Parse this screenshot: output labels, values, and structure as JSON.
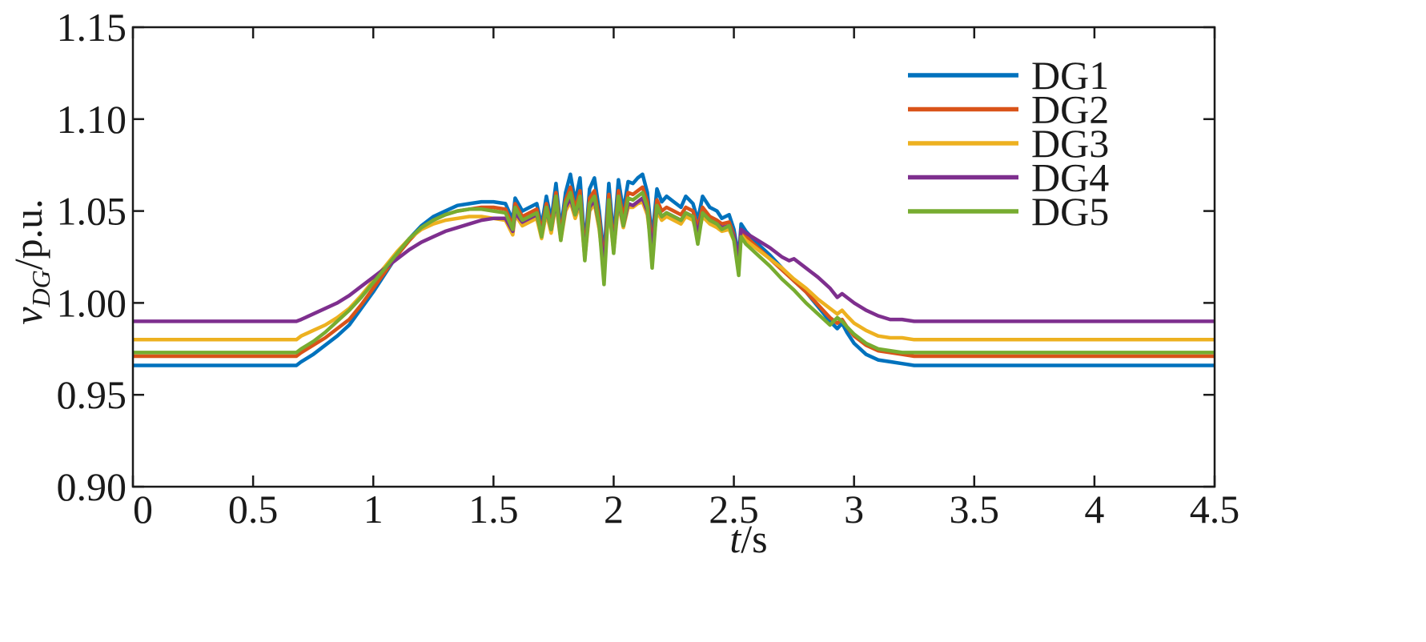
{
  "chart_data": {
    "type": "line",
    "xlabel_italic": "t",
    "xlabel_unit": "/s",
    "ylabel_main": "v",
    "ylabel_sub": "DG",
    "ylabel_unit": "/p.u.",
    "xlim": [
      0,
      4.5
    ],
    "ylim": [
      0.9,
      1.15
    ],
    "xticks": [
      0,
      0.5,
      1,
      1.5,
      2,
      2.5,
      3,
      3.5,
      4,
      4.5
    ],
    "xtick_labels": [
      "0",
      "0.5",
      "1",
      "1.5",
      "2",
      "2.5",
      "3",
      "3.5",
      "4",
      "4.5"
    ],
    "yticks": [
      0.9,
      0.95,
      1.0,
      1.05,
      1.1,
      1.15
    ],
    "ytick_labels": [
      "0.90",
      "0.95",
      "1.00",
      "1.05",
      "1.10",
      "1.15"
    ],
    "grid": false,
    "legend_position": "top-right",
    "series": [
      {
        "name": "DG1",
        "color": "#0072BD",
        "x": [
          0,
          0.68,
          0.7,
          0.75,
          0.8,
          0.85,
          0.9,
          0.95,
          1.0,
          1.05,
          1.1,
          1.15,
          1.2,
          1.25,
          1.3,
          1.35,
          1.4,
          1.45,
          1.5,
          1.55,
          1.58,
          1.59,
          1.62,
          1.65,
          1.68,
          1.7,
          1.72,
          1.74,
          1.76,
          1.78,
          1.8,
          1.82,
          1.84,
          1.86,
          1.88,
          1.9,
          1.92,
          1.94,
          1.96,
          1.98,
          2.0,
          2.02,
          2.04,
          2.06,
          2.08,
          2.1,
          2.12,
          2.14,
          2.16,
          2.18,
          2.2,
          2.22,
          2.25,
          2.28,
          2.3,
          2.33,
          2.35,
          2.37,
          2.4,
          2.43,
          2.45,
          2.48,
          2.5,
          2.52,
          2.53,
          2.55,
          2.6,
          2.65,
          2.7,
          2.75,
          2.8,
          2.85,
          2.9,
          2.93,
          2.95,
          2.97,
          3.0,
          3.05,
          3.1,
          3.15,
          3.2,
          3.25,
          3.3,
          3.5,
          4.0,
          4.5
        ],
        "y": [
          0.966,
          0.966,
          0.968,
          0.972,
          0.977,
          0.982,
          0.988,
          0.997,
          1.006,
          1.016,
          1.026,
          1.035,
          1.042,
          1.047,
          1.05,
          1.053,
          1.054,
          1.055,
          1.055,
          1.054,
          1.045,
          1.057,
          1.05,
          1.052,
          1.054,
          1.042,
          1.058,
          1.045,
          1.065,
          1.04,
          1.06,
          1.07,
          1.055,
          1.068,
          1.03,
          1.062,
          1.068,
          1.05,
          1.025,
          1.065,
          1.035,
          1.067,
          1.05,
          1.066,
          1.065,
          1.068,
          1.07,
          1.06,
          1.035,
          1.062,
          1.055,
          1.058,
          1.055,
          1.052,
          1.058,
          1.054,
          1.045,
          1.058,
          1.052,
          1.05,
          1.046,
          1.048,
          1.04,
          1.025,
          1.043,
          1.039,
          1.032,
          1.026,
          1.019,
          1.012,
          1.006,
          0.998,
          0.99,
          0.986,
          0.989,
          0.984,
          0.978,
          0.972,
          0.969,
          0.968,
          0.967,
          0.966,
          0.966,
          0.966,
          0.966,
          0.966
        ]
      },
      {
        "name": "DG2",
        "color": "#D95319",
        "x": [
          0,
          0.68,
          0.7,
          0.75,
          0.8,
          0.85,
          0.9,
          0.95,
          1.0,
          1.05,
          1.1,
          1.15,
          1.2,
          1.25,
          1.3,
          1.35,
          1.4,
          1.45,
          1.5,
          1.55,
          1.58,
          1.59,
          1.62,
          1.65,
          1.68,
          1.7,
          1.72,
          1.74,
          1.76,
          1.78,
          1.8,
          1.82,
          1.84,
          1.86,
          1.88,
          1.9,
          1.92,
          1.94,
          1.96,
          1.98,
          2.0,
          2.02,
          2.04,
          2.06,
          2.08,
          2.1,
          2.12,
          2.14,
          2.16,
          2.18,
          2.2,
          2.22,
          2.25,
          2.28,
          2.3,
          2.33,
          2.35,
          2.37,
          2.4,
          2.43,
          2.45,
          2.48,
          2.5,
          2.52,
          2.53,
          2.55,
          2.6,
          2.65,
          2.7,
          2.75,
          2.8,
          2.85,
          2.9,
          2.93,
          2.95,
          2.97,
          3.0,
          3.05,
          3.1,
          3.15,
          3.2,
          3.25,
          3.3,
          3.5,
          4.0,
          4.5
        ],
        "y": [
          0.971,
          0.971,
          0.973,
          0.977,
          0.981,
          0.986,
          0.991,
          0.999,
          1.008,
          1.017,
          1.026,
          1.034,
          1.041,
          1.045,
          1.048,
          1.05,
          1.051,
          1.052,
          1.052,
          1.051,
          1.042,
          1.054,
          1.047,
          1.049,
          1.051,
          1.039,
          1.054,
          1.042,
          1.06,
          1.037,
          1.056,
          1.063,
          1.051,
          1.061,
          1.027,
          1.057,
          1.061,
          1.046,
          1.021,
          1.059,
          1.031,
          1.061,
          1.046,
          1.06,
          1.059,
          1.061,
          1.063,
          1.055,
          1.031,
          1.056,
          1.05,
          1.052,
          1.05,
          1.048,
          1.052,
          1.05,
          1.041,
          1.052,
          1.047,
          1.045,
          1.043,
          1.044,
          1.037,
          1.022,
          1.04,
          1.036,
          1.03,
          1.024,
          1.018,
          1.012,
          1.006,
          0.999,
          0.992,
          0.989,
          0.991,
          0.987,
          0.982,
          0.977,
          0.974,
          0.973,
          0.972,
          0.971,
          0.971,
          0.971,
          0.971,
          0.971
        ]
      },
      {
        "name": "DG3",
        "color": "#EDB120",
        "x": [
          0,
          0.68,
          0.7,
          0.75,
          0.8,
          0.85,
          0.9,
          0.95,
          1.0,
          1.05,
          1.1,
          1.15,
          1.2,
          1.25,
          1.3,
          1.35,
          1.4,
          1.45,
          1.5,
          1.55,
          1.58,
          1.59,
          1.62,
          1.65,
          1.68,
          1.7,
          1.72,
          1.74,
          1.76,
          1.78,
          1.8,
          1.82,
          1.84,
          1.86,
          1.88,
          1.9,
          1.92,
          1.94,
          1.96,
          1.98,
          2.0,
          2.02,
          2.04,
          2.06,
          2.08,
          2.1,
          2.12,
          2.14,
          2.16,
          2.18,
          2.2,
          2.22,
          2.25,
          2.28,
          2.3,
          2.33,
          2.35,
          2.37,
          2.4,
          2.43,
          2.45,
          2.48,
          2.5,
          2.52,
          2.53,
          2.55,
          2.6,
          2.65,
          2.7,
          2.75,
          2.8,
          2.85,
          2.9,
          2.93,
          2.95,
          2.97,
          3.0,
          3.05,
          3.1,
          3.15,
          3.2,
          3.25,
          3.3,
          3.5,
          4.0,
          4.5
        ],
        "y": [
          0.98,
          0.98,
          0.982,
          0.985,
          0.988,
          0.992,
          0.997,
          1.004,
          1.012,
          1.02,
          1.028,
          1.035,
          1.04,
          1.043,
          1.045,
          1.046,
          1.047,
          1.047,
          1.046,
          1.045,
          1.037,
          1.048,
          1.042,
          1.044,
          1.046,
          1.035,
          1.049,
          1.038,
          1.054,
          1.034,
          1.05,
          1.055,
          1.046,
          1.054,
          1.024,
          1.05,
          1.054,
          1.04,
          1.017,
          1.052,
          1.028,
          1.054,
          1.041,
          1.052,
          1.052,
          1.054,
          1.055,
          1.048,
          1.027,
          1.05,
          1.045,
          1.047,
          1.045,
          1.043,
          1.047,
          1.045,
          1.036,
          1.047,
          1.043,
          1.041,
          1.039,
          1.04,
          1.034,
          1.02,
          1.037,
          1.034,
          1.029,
          1.024,
          1.019,
          1.013,
          1.008,
          1.002,
          0.997,
          0.994,
          0.996,
          0.993,
          0.989,
          0.985,
          0.982,
          0.981,
          0.981,
          0.98,
          0.98,
          0.98,
          0.98,
          0.98
        ]
      },
      {
        "name": "DG4",
        "color": "#7E2F8E",
        "x": [
          0,
          0.68,
          0.7,
          0.75,
          0.8,
          0.85,
          0.9,
          0.95,
          1.0,
          1.05,
          1.1,
          1.15,
          1.2,
          1.25,
          1.3,
          1.35,
          1.4,
          1.45,
          1.5,
          1.55,
          1.58,
          1.59,
          1.62,
          1.65,
          1.68,
          1.7,
          1.72,
          1.74,
          1.76,
          1.78,
          1.8,
          1.82,
          1.84,
          1.86,
          1.88,
          1.9,
          1.92,
          1.94,
          1.96,
          1.98,
          2.0,
          2.02,
          2.04,
          2.06,
          2.08,
          2.1,
          2.12,
          2.14,
          2.16,
          2.18,
          2.2,
          2.22,
          2.25,
          2.28,
          2.3,
          2.33,
          2.35,
          2.37,
          2.4,
          2.43,
          2.45,
          2.48,
          2.5,
          2.52,
          2.53,
          2.55,
          2.6,
          2.65,
          2.7,
          2.73,
          2.75,
          2.8,
          2.85,
          2.9,
          2.93,
          2.95,
          2.97,
          3.0,
          3.05,
          3.1,
          3.15,
          3.2,
          3.25,
          3.3,
          3.5,
          4.0,
          4.5
        ],
        "y": [
          0.99,
          0.99,
          0.991,
          0.994,
          0.997,
          1.0,
          1.004,
          1.009,
          1.014,
          1.019,
          1.024,
          1.029,
          1.033,
          1.036,
          1.039,
          1.041,
          1.043,
          1.045,
          1.046,
          1.046,
          1.039,
          1.049,
          1.044,
          1.046,
          1.048,
          1.037,
          1.051,
          1.04,
          1.056,
          1.035,
          1.052,
          1.057,
          1.048,
          1.056,
          1.026,
          1.052,
          1.056,
          1.042,
          1.019,
          1.054,
          1.03,
          1.056,
          1.042,
          1.054,
          1.053,
          1.055,
          1.057,
          1.05,
          1.029,
          1.052,
          1.047,
          1.049,
          1.047,
          1.045,
          1.049,
          1.047,
          1.038,
          1.049,
          1.045,
          1.043,
          1.041,
          1.042,
          1.036,
          1.024,
          1.04,
          1.038,
          1.034,
          1.03,
          1.025,
          1.023,
          1.024,
          1.019,
          1.014,
          1.008,
          1.003,
          1.005,
          1.003,
          1.0,
          0.996,
          0.993,
          0.991,
          0.991,
          0.99,
          0.99,
          0.99,
          0.99,
          0.99
        ]
      },
      {
        "name": "DG5",
        "color": "#77AC30",
        "x": [
          0,
          0.68,
          0.7,
          0.75,
          0.8,
          0.85,
          0.9,
          0.95,
          1.0,
          1.05,
          1.1,
          1.15,
          1.2,
          1.25,
          1.3,
          1.35,
          1.4,
          1.45,
          1.5,
          1.55,
          1.58,
          1.59,
          1.62,
          1.65,
          1.68,
          1.7,
          1.72,
          1.74,
          1.76,
          1.78,
          1.8,
          1.82,
          1.84,
          1.86,
          1.88,
          1.9,
          1.92,
          1.94,
          1.96,
          1.98,
          2.0,
          2.02,
          2.04,
          2.06,
          2.08,
          2.1,
          2.12,
          2.14,
          2.16,
          2.18,
          2.2,
          2.22,
          2.25,
          2.28,
          2.3,
          2.33,
          2.35,
          2.37,
          2.4,
          2.43,
          2.45,
          2.48,
          2.5,
          2.52,
          2.53,
          2.55,
          2.6,
          2.65,
          2.7,
          2.75,
          2.8,
          2.85,
          2.9,
          2.93,
          2.95,
          2.97,
          3.0,
          3.05,
          3.1,
          3.15,
          3.2,
          3.25,
          3.3,
          3.5,
          4.0,
          4.5
        ],
        "y": [
          0.973,
          0.973,
          0.975,
          0.979,
          0.984,
          0.99,
          0.996,
          1.003,
          1.011,
          1.019,
          1.027,
          1.035,
          1.041,
          1.045,
          1.048,
          1.05,
          1.051,
          1.051,
          1.05,
          1.049,
          1.04,
          1.052,
          1.045,
          1.047,
          1.049,
          1.036,
          1.052,
          1.04,
          1.058,
          1.034,
          1.054,
          1.06,
          1.048,
          1.058,
          1.023,
          1.054,
          1.058,
          1.042,
          1.01,
          1.056,
          1.027,
          1.058,
          1.042,
          1.057,
          1.056,
          1.058,
          1.06,
          1.052,
          1.019,
          1.053,
          1.047,
          1.049,
          1.047,
          1.045,
          1.049,
          1.047,
          1.032,
          1.049,
          1.045,
          1.043,
          1.04,
          1.042,
          1.034,
          1.015,
          1.036,
          1.032,
          1.026,
          1.02,
          1.013,
          1.007,
          1.0,
          0.994,
          0.988,
          0.992,
          0.99,
          0.987,
          0.983,
          0.978,
          0.975,
          0.974,
          0.973,
          0.973,
          0.973,
          0.973,
          0.973,
          0.973
        ]
      }
    ]
  }
}
